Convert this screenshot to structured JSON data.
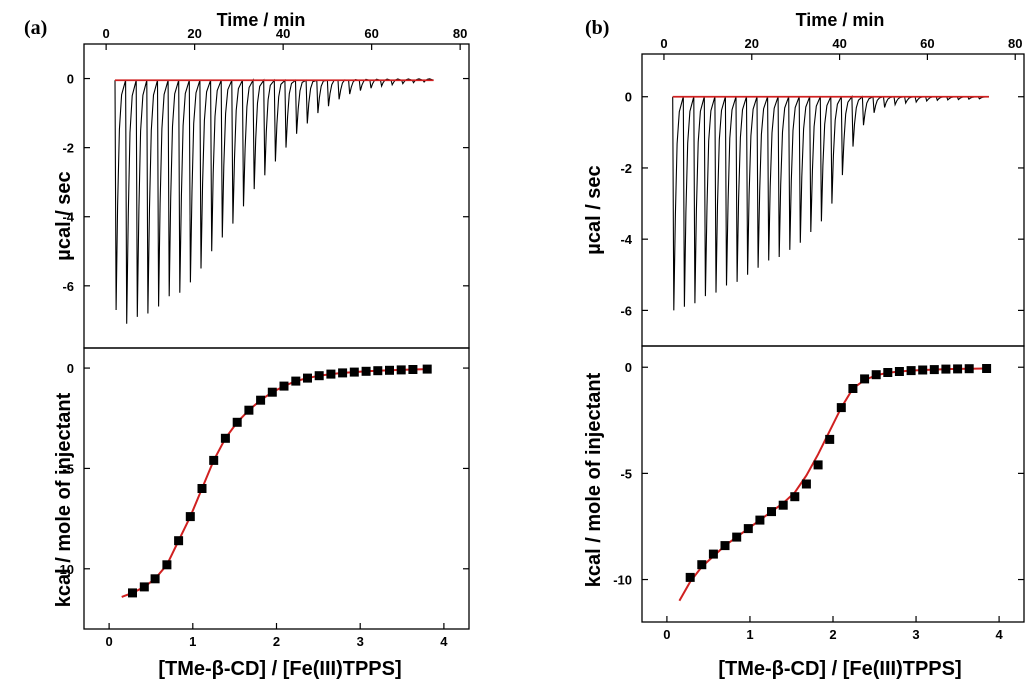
{
  "chart_data": [
    {
      "panel_label": "(a)",
      "type": "line",
      "raw": {
        "xlabel": "Time / min",
        "ylabel": "µcal / sec",
        "xlim": [
          -5,
          82
        ],
        "ylim": [
          -7.8,
          1.0
        ],
        "xticks": [
          0,
          20,
          40,
          60,
          80
        ],
        "yticks": [
          0,
          -2,
          -4,
          -6
        ],
        "baseline": -0.05,
        "injections": {
          "count": 30,
          "first_time": 2.0,
          "interval": 2.4,
          "peaks": [
            -6.7,
            -7.1,
            -6.9,
            -6.8,
            -6.6,
            -6.3,
            -6.2,
            -5.9,
            -5.5,
            -5.0,
            -4.6,
            -4.2,
            -3.7,
            -3.2,
            -2.8,
            -2.4,
            -2.0,
            -1.6,
            -1.3,
            -1.0,
            -0.8,
            -0.6,
            -0.45,
            -0.35,
            -0.28,
            -0.22,
            -0.18,
            -0.15,
            -0.12,
            -0.1
          ]
        }
      },
      "integrated": {
        "type": "scatter",
        "xlabel": "[TMe-β-CD] / [Fe(III)TPPS]",
        "ylabel": "kcal / mole of injectant",
        "xlim": [
          -0.3,
          4.3
        ],
        "ylim": [
          -13,
          1
        ],
        "xticks": [
          0,
          1,
          2,
          3,
          4
        ],
        "yticks": [
          0,
          -5,
          -10
        ],
        "points": {
          "x": [
            0.28,
            0.42,
            0.55,
            0.69,
            0.83,
            0.97,
            1.11,
            1.25,
            1.39,
            1.53,
            1.67,
            1.81,
            1.95,
            2.09,
            2.23,
            2.37,
            2.51,
            2.65,
            2.79,
            2.93,
            3.07,
            3.21,
            3.35,
            3.49,
            3.63,
            3.8
          ],
          "y": [
            -11.2,
            -10.9,
            -10.5,
            -9.8,
            -8.6,
            -7.4,
            -6.0,
            -4.6,
            -3.5,
            -2.7,
            -2.1,
            -1.6,
            -1.2,
            -0.9,
            -0.65,
            -0.5,
            -0.38,
            -0.3,
            -0.24,
            -0.2,
            -0.16,
            -0.13,
            -0.11,
            -0.09,
            -0.07,
            -0.05
          ]
        },
        "fit": {
          "x": [
            0.15,
            0.28,
            0.42,
            0.55,
            0.69,
            0.83,
            0.97,
            1.11,
            1.25,
            1.39,
            1.53,
            1.67,
            1.81,
            1.95,
            2.09,
            2.23,
            2.37,
            2.51,
            2.65,
            2.79,
            2.93,
            3.07,
            3.21,
            3.35,
            3.49,
            3.63,
            3.8
          ],
          "y": [
            -11.4,
            -11.2,
            -10.9,
            -10.5,
            -9.8,
            -8.6,
            -7.4,
            -6.0,
            -4.6,
            -3.5,
            -2.7,
            -2.1,
            -1.6,
            -1.2,
            -0.9,
            -0.65,
            -0.5,
            -0.38,
            -0.3,
            -0.24,
            -0.2,
            -0.16,
            -0.13,
            -0.11,
            -0.09,
            -0.07,
            -0.05
          ]
        }
      },
      "colors": {
        "fit": "#d02020",
        "data": "#000000"
      }
    },
    {
      "panel_label": "(b)",
      "type": "line",
      "raw": {
        "xlabel": "Time / min",
        "ylabel": "µcal / sec",
        "xlim": [
          -5,
          82
        ],
        "ylim": [
          -7.0,
          1.2
        ],
        "xticks": [
          0,
          20,
          40,
          60,
          80
        ],
        "yticks": [
          0,
          -2,
          -4,
          -6
        ],
        "baseline": 0.0,
        "injections": {
          "count": 30,
          "first_time": 2.0,
          "interval": 2.4,
          "peaks": [
            -6.0,
            -5.9,
            -5.8,
            -5.6,
            -5.5,
            -5.3,
            -5.2,
            -5.0,
            -4.8,
            -4.6,
            -4.5,
            -4.3,
            -4.1,
            -3.8,
            -3.5,
            -3.0,
            -2.2,
            -1.4,
            -0.8,
            -0.45,
            -0.3,
            -0.22,
            -0.18,
            -0.15,
            -0.12,
            -0.1,
            -0.09,
            -0.08,
            -0.07,
            -0.06
          ]
        }
      },
      "integrated": {
        "type": "scatter",
        "xlabel": "[TMe-β-CD] / [Fe(III)TPPS]",
        "ylabel": "kcal / mole of injectant",
        "xlim": [
          -0.3,
          4.3
        ],
        "ylim": [
          -12,
          1
        ],
        "xticks": [
          0,
          1,
          2,
          3,
          4
        ],
        "yticks": [
          0,
          -5,
          -10
        ],
        "points": {
          "x": [
            0.28,
            0.42,
            0.56,
            0.7,
            0.84,
            0.98,
            1.12,
            1.26,
            1.4,
            1.54,
            1.68,
            1.82,
            1.96,
            2.1,
            2.24,
            2.38,
            2.52,
            2.66,
            2.8,
            2.94,
            3.08,
            3.22,
            3.36,
            3.5,
            3.64,
            3.85
          ],
          "y": [
            -9.9,
            -9.3,
            -8.8,
            -8.4,
            -8.0,
            -7.6,
            -7.2,
            -6.8,
            -6.5,
            -6.1,
            -5.5,
            -4.6,
            -3.4,
            -1.9,
            -1.0,
            -0.55,
            -0.35,
            -0.25,
            -0.2,
            -0.16,
            -0.13,
            -0.11,
            -0.09,
            -0.08,
            -0.07,
            -0.06
          ]
        },
        "fit": {
          "x": [
            0.15,
            0.28,
            0.42,
            0.56,
            0.7,
            0.84,
            0.98,
            1.12,
            1.26,
            1.4,
            1.54,
            1.68,
            1.82,
            1.96,
            2.1,
            2.24,
            2.38,
            2.52,
            2.66,
            2.8,
            2.94,
            3.08,
            3.22,
            3.36,
            3.5,
            3.64,
            3.85
          ],
          "y": [
            -11.0,
            -10.1,
            -9.4,
            -8.9,
            -8.4,
            -8.0,
            -7.6,
            -7.2,
            -6.8,
            -6.4,
            -5.9,
            -5.1,
            -4.1,
            -3.0,
            -1.9,
            -1.0,
            -0.6,
            -0.38,
            -0.26,
            -0.2,
            -0.16,
            -0.13,
            -0.11,
            -0.09,
            -0.08,
            -0.07,
            -0.06
          ]
        }
      },
      "colors": {
        "fit": "#d02020",
        "data": "#000000"
      }
    }
  ]
}
